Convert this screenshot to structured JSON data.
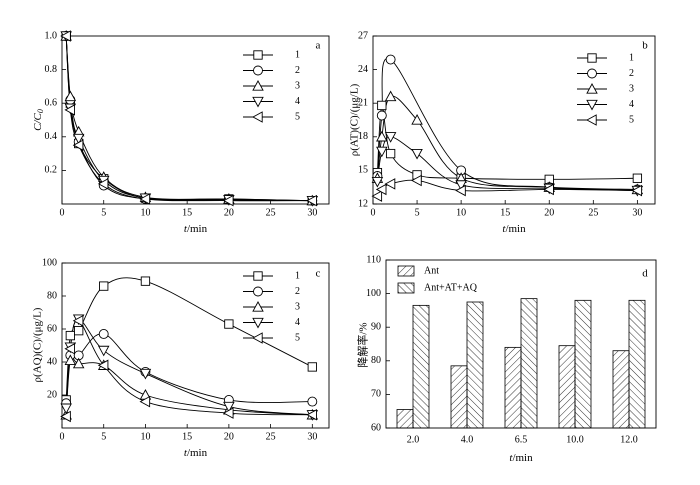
{
  "chart_data": [
    {
      "type": "line",
      "panel_label": "a",
      "xlabel": "t/min",
      "ylabel": "C/C0",
      "ylabel_main": "C/C",
      "ylabel_sub": "0",
      "xlim": [
        0,
        32
      ],
      "ylim": [
        0,
        1.0
      ],
      "xticks": [
        0,
        5,
        10,
        15,
        20,
        25,
        30
      ],
      "yticks": [
        0.2,
        0.4,
        0.6,
        0.8,
        1.0
      ],
      "ytick_labels": [
        "0.2",
        "0.4",
        "0.6",
        "0.8",
        "1.0"
      ],
      "legend_position": "top-right",
      "series": [
        {
          "name": "1",
          "marker": "square",
          "x": [
            1,
            2,
            5,
            10,
            20,
            30
          ],
          "y": [
            0.6,
            0.36,
            0.15,
            0.035,
            0.03,
            0.02
          ]
        },
        {
          "name": "2",
          "marker": "circle",
          "x": [
            1,
            2,
            5,
            10,
            20,
            30
          ],
          "y": [
            0.62,
            0.37,
            0.11,
            0.03,
            0.025,
            0.02
          ]
        },
        {
          "name": "3",
          "marker": "triangle-up",
          "x": [
            1,
            2,
            5,
            10,
            20,
            30
          ],
          "y": [
            0.64,
            0.43,
            0.16,
            0.04,
            0.03,
            0.02
          ]
        },
        {
          "name": "4",
          "marker": "triangle-down",
          "x": [
            1,
            2,
            5,
            10,
            20,
            30
          ],
          "y": [
            0.57,
            0.39,
            0.14,
            0.035,
            0.025,
            0.02
          ]
        },
        {
          "name": "5",
          "marker": "triangle-left",
          "x": [
            1,
            2,
            5,
            10,
            20,
            30
          ],
          "y": [
            0.56,
            0.35,
            0.12,
            0.03,
            0.02,
            0.02
          ]
        }
      ],
      "shared_start": {
        "x": 0.5,
        "y": 1.0
      }
    },
    {
      "type": "line",
      "panel_label": "b",
      "xlabel": "t/min",
      "ylabel": "ρ(AT)(C)/(μg/L)",
      "xlim": [
        0,
        32
      ],
      "ylim": [
        12,
        27
      ],
      "xticks": [
        0,
        5,
        10,
        15,
        20,
        25,
        30
      ],
      "yticks": [
        12,
        15,
        18,
        21,
        24,
        27
      ],
      "legend_position": "top-right",
      "series": [
        {
          "name": "1",
          "marker": "square",
          "x": [
            0.5,
            1,
            2,
            5,
            10,
            20,
            30
          ],
          "y": [
            14.8,
            20.8,
            16.5,
            14.6,
            14.3,
            14.2,
            14.3
          ]
        },
        {
          "name": "2",
          "marker": "circle",
          "x": [
            0.5,
            1,
            2,
            10,
            20,
            30
          ],
          "y": [
            14.5,
            19.9,
            24.9,
            15.0,
            13.5,
            13.3
          ]
        },
        {
          "name": "3",
          "marker": "triangle-up",
          "x": [
            0.5,
            1,
            2,
            5,
            10,
            20,
            30
          ],
          "y": [
            14.3,
            18.0,
            21.6,
            19.5,
            14.3,
            13.5,
            13.3
          ]
        },
        {
          "name": "4",
          "marker": "triangle-down",
          "x": [
            0.5,
            1,
            2,
            5,
            10,
            20,
            30
          ],
          "y": [
            14.0,
            16.7,
            18.0,
            16.5,
            13.7,
            13.4,
            13.2
          ]
        },
        {
          "name": "5",
          "marker": "triangle-left",
          "x": [
            0.5,
            1,
            2,
            5,
            10,
            20,
            30
          ],
          "y": [
            12.7,
            13.3,
            13.8,
            14.1,
            13.2,
            13.3,
            13.2
          ]
        }
      ]
    },
    {
      "type": "line",
      "panel_label": "c",
      "xlabel": "t/min",
      "ylabel": "ρ(AQ)(C)/(μg/L)",
      "xlim": [
        0,
        32
      ],
      "ylim": [
        0,
        100
      ],
      "xticks": [
        0,
        5,
        10,
        15,
        20,
        25,
        30
      ],
      "yticks": [
        20,
        40,
        60,
        80,
        100
      ],
      "legend_position": "top-right",
      "series": [
        {
          "name": "1",
          "marker": "square",
          "x": [
            0.5,
            1,
            2,
            5,
            10,
            20,
            30
          ],
          "y": [
            17,
            56,
            59,
            86,
            89,
            63,
            37
          ]
        },
        {
          "name": "2",
          "marker": "circle",
          "x": [
            0.5,
            1,
            2,
            5,
            10,
            20,
            30
          ],
          "y": [
            15,
            44,
            44,
            57,
            34,
            17,
            16
          ]
        },
        {
          "name": "3",
          "marker": "triangle-up",
          "x": [
            0.5,
            1,
            2,
            5,
            10,
            20,
            30
          ],
          "y": [
            8,
            41,
            39,
            38,
            20,
            11,
            8
          ]
        },
        {
          "name": "4",
          "marker": "triangle-down",
          "x": [
            0.5,
            1,
            2,
            5,
            10,
            20,
            30
          ],
          "y": [
            12,
            49,
            66,
            47,
            33,
            13,
            8
          ]
        },
        {
          "name": "5",
          "marker": "triangle-left",
          "x": [
            0.5,
            1,
            2,
            5,
            10,
            20,
            30
          ],
          "y": [
            7,
            48,
            65,
            38,
            16,
            9,
            8
          ]
        }
      ]
    },
    {
      "type": "bar",
      "panel_label": "d",
      "xlabel": "t/min",
      "ylabel": "降解率/%",
      "categories": [
        "2.0",
        "4.0",
        "6.5",
        "10.0",
        "12.0"
      ],
      "ylim": [
        60,
        110
      ],
      "yticks": [
        60,
        70,
        80,
        90,
        100,
        110
      ],
      "legend_position": "top-left",
      "series": [
        {
          "name": "Ant",
          "pattern": "hatch-right",
          "values": [
            65.5,
            78.5,
            84,
            84.5,
            83
          ]
        },
        {
          "name": "Ant+AT+AQ",
          "pattern": "hatch-left",
          "values": [
            96.5,
            97.5,
            98.5,
            98,
            98
          ]
        }
      ]
    }
  ]
}
